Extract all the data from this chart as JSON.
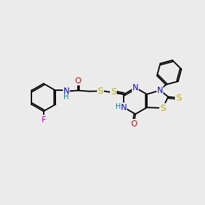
{
  "bg": "#ebebeb",
  "bc": "#000000",
  "bw": 1.4,
  "atom_colors": {
    "F": "#cc00cc",
    "O": "#ff0000",
    "N": "#0000ff",
    "S": "#bbaa00",
    "H": "#008080",
    "C": "#000000"
  },
  "fs": 8.5,
  "fs_small": 7.5
}
